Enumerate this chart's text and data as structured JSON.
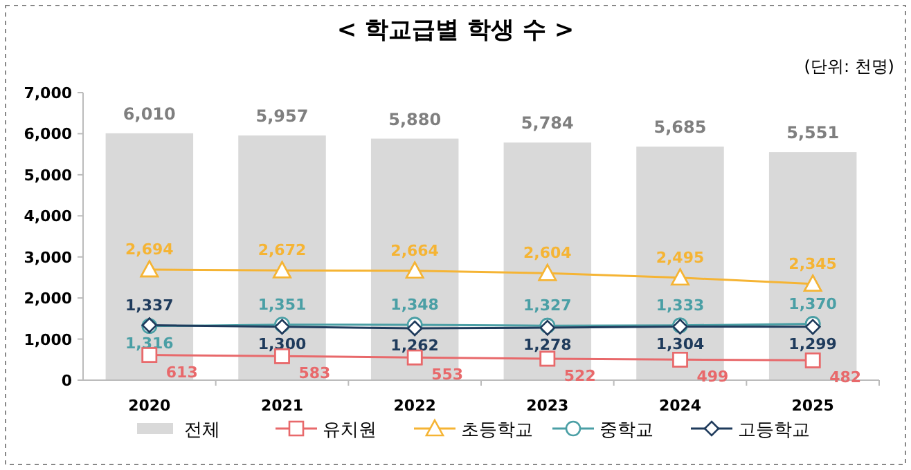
{
  "chart_data": {
    "type": "bar",
    "title": "< 학교급별 학생 수 >",
    "annotations": [
      "(단위: 천명)"
    ],
    "categories": [
      "2020",
      "2021",
      "2022",
      "2023",
      "2024",
      "2025"
    ],
    "series": [
      {
        "name": "전체",
        "color": "#d9d9d9",
        "values": [
          6010,
          5957,
          5880,
          5784,
          5685,
          5551
        ],
        "value_labels": [
          "6,010",
          "5,957",
          "5,880",
          "5,784",
          "5,685",
          "5,551"
        ]
      },
      {
        "name": "유치원",
        "type": "line",
        "marker": "square",
        "color": "#e8696b",
        "values": [
          613,
          583,
          553,
          522,
          499,
          482
        ],
        "value_labels": [
          "613",
          "583",
          "553",
          "522",
          "499",
          "482"
        ]
      },
      {
        "name": "초등학교",
        "type": "line",
        "marker": "triangle",
        "color": "#f5b434",
        "values": [
          2694,
          2672,
          2664,
          2604,
          2495,
          2345
        ],
        "value_labels": [
          "2,694",
          "2,672",
          "2,664",
          "2,604",
          "2,495",
          "2,345"
        ]
      },
      {
        "name": "중학교",
        "type": "line",
        "marker": "circle",
        "color": "#4a9fa5",
        "values": [
          1316,
          1351,
          1348,
          1327,
          1333,
          1370
        ],
        "value_labels": [
          "1,316",
          "1,351",
          "1,348",
          "1,327",
          "1,333",
          "1,370"
        ]
      },
      {
        "name": "고등학교",
        "type": "line",
        "marker": "diamond",
        "color": "#1f3b5c",
        "values": [
          1337,
          1300,
          1262,
          1278,
          1304,
          1299
        ],
        "value_labels": [
          "1,337",
          "1,300",
          "1,262",
          "1,278",
          "1,304",
          "1,299"
        ]
      }
    ],
    "ylim": [
      0,
      7000
    ],
    "yticks": [
      {
        "value": 0,
        "label": "0"
      },
      {
        "value": 1000,
        "label": "1,000"
      },
      {
        "value": 2000,
        "label": "2,000"
      },
      {
        "value": 3000,
        "label": "3,000"
      },
      {
        "value": 4000,
        "label": "4,000"
      },
      {
        "value": 5000,
        "label": "5,000"
      },
      {
        "value": 6000,
        "label": "6,000"
      },
      {
        "value": 7000,
        "label": "7,000"
      }
    ],
    "legend": "bottom"
  }
}
